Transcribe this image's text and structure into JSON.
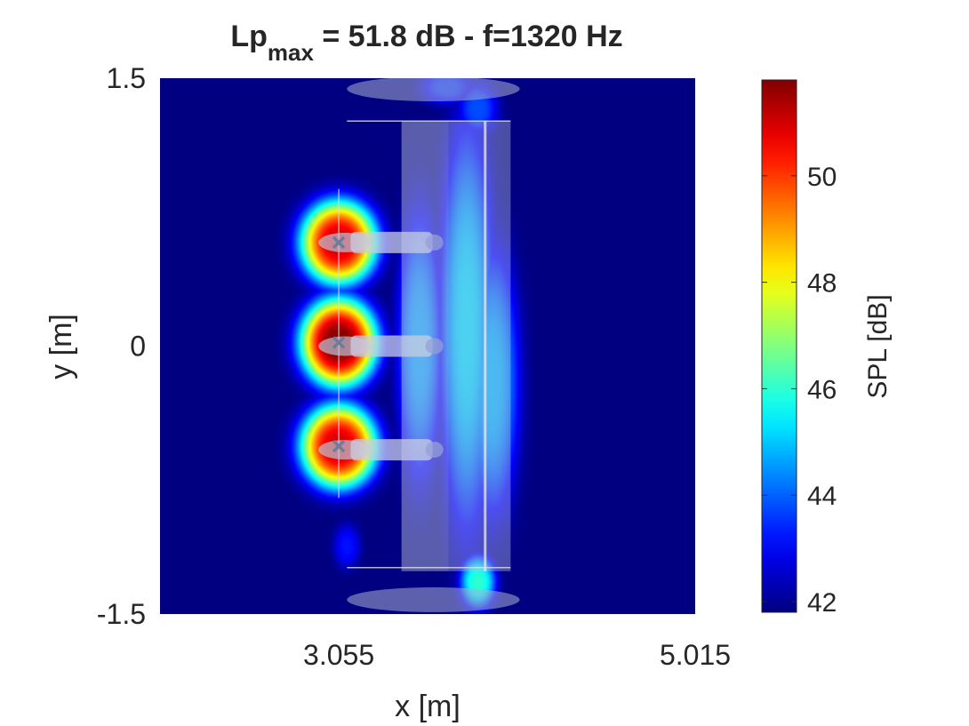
{
  "chart_data": {
    "type": "heatmap",
    "title": {
      "main": "Lp",
      "subscript": "max",
      "rest": " = 51.8 dB - f=1320 Hz"
    },
    "xlabel": "x [m]",
    "ylabel": "y [m]",
    "xlim": [
      2.072,
      5.015
    ],
    "ylim": [
      -1.5,
      1.5
    ],
    "xticks": [
      3.055,
      5.015
    ],
    "xtick_labels": [
      "3.055",
      "5.015"
    ],
    "yticks": [
      -1.5,
      0,
      1.5
    ],
    "ytick_labels": [
      "-1.5",
      "0",
      "1.5"
    ],
    "colorbar": {
      "label": "SPL [dB]",
      "range": [
        41.8,
        51.8
      ],
      "ticks": [
        42,
        44,
        46,
        48,
        50
      ],
      "tick_labels": [
        "42",
        "44",
        "46",
        "48",
        "50"
      ],
      "colormap": "jet"
    },
    "grid": false,
    "background_level_db": 41.8,
    "hotspots": [
      {
        "x": 3.055,
        "y": 0.58,
        "peak_db": 51.0,
        "sx": 0.17,
        "sy": 0.19
      },
      {
        "x": 3.055,
        "y": 0.02,
        "peak_db": 51.8,
        "sx": 0.17,
        "sy": 0.2
      },
      {
        "x": 3.055,
        "y": -0.56,
        "peak_db": 51.0,
        "sx": 0.17,
        "sy": 0.19
      },
      {
        "x": 3.5,
        "y": 0.0,
        "peak_db": 44.6,
        "sx": 0.1,
        "sy": 0.6
      },
      {
        "x": 3.76,
        "y": 0.1,
        "peak_db": 45.2,
        "sx": 0.12,
        "sy": 0.9
      },
      {
        "x": 3.9,
        "y": -0.2,
        "peak_db": 44.8,
        "sx": 0.12,
        "sy": 0.6
      },
      {
        "x": 3.82,
        "y": -1.32,
        "peak_db": 46.0,
        "sx": 0.08,
        "sy": 0.12
      },
      {
        "x": 3.82,
        "y": 1.33,
        "peak_db": 43.8,
        "sx": 0.09,
        "sy": 0.12
      },
      {
        "x": 3.1,
        "y": -1.12,
        "peak_db": 43.2,
        "sx": 0.06,
        "sy": 0.1
      },
      {
        "x": 3.65,
        "y": 1.45,
        "peak_db": 43.6,
        "sx": 0.12,
        "sy": 0.08
      }
    ],
    "source_markers": [
      {
        "x": 3.055,
        "y": 0.58
      },
      {
        "x": 3.055,
        "y": 0.02
      },
      {
        "x": 3.055,
        "y": -0.56
      }
    ],
    "overlay": {
      "fuselage": {
        "x": [
          3.4,
          3.66
        ],
        "y": [
          -1.26,
          1.26
        ]
      },
      "body": {
        "x": [
          3.66,
          4.0
        ],
        "y": [
          -1.26,
          1.26
        ]
      },
      "body_line_x": 3.86,
      "array_line_x": 3.055,
      "array_line_y": [
        -0.85,
        0.88
      ],
      "top_rod_y": 1.26,
      "bottom_rod_y": -1.24,
      "rod_x": [
        3.1,
        4.0
      ],
      "top_wing_y": 1.44,
      "bottom_wing_y": -1.42,
      "wing_x": [
        3.1,
        4.05
      ],
      "nacelles": [
        {
          "x": [
            2.95,
            3.62
          ],
          "y": 0.58
        },
        {
          "x": [
            2.95,
            3.62
          ],
          "y": 0.0
        },
        {
          "x": [
            2.95,
            3.62
          ],
          "y": -0.58
        }
      ]
    }
  }
}
